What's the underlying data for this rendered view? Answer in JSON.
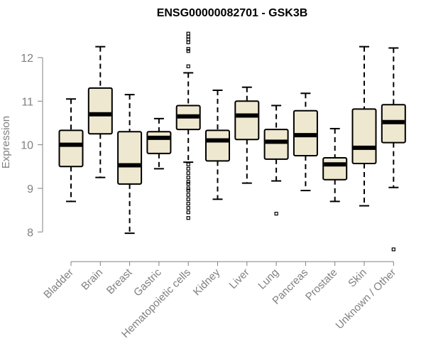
{
  "chart_data": {
    "type": "boxplot",
    "title": "ENSG00000082701 - GSK3B",
    "xlabel": "",
    "ylabel": "Expression",
    "ylim": [
      7.45,
      12.75
    ],
    "yticks": [
      8,
      9,
      10,
      11,
      12
    ],
    "colors": {
      "box_fill": "#efe8d0",
      "stroke": "#000000",
      "axis": "#808080",
      "text": "#808080",
      "title": "#000000"
    },
    "categories": [
      "Bladder",
      "Brain",
      "Breast",
      "Gastric",
      "Hematopoietic cells",
      "Kidney",
      "Liver",
      "Lung",
      "Pancreas",
      "Prostate",
      "Skin",
      "Unknown / Other"
    ],
    "boxes": [
      {
        "category": "Bladder",
        "whisker_low": 8.7,
        "q1": 9.5,
        "median": 10.0,
        "q3": 10.33,
        "whisker_high": 11.05,
        "outliers": []
      },
      {
        "category": "Brain",
        "whisker_low": 9.25,
        "q1": 10.25,
        "median": 10.7,
        "q3": 11.3,
        "whisker_high": 12.25,
        "outliers": []
      },
      {
        "category": "Breast",
        "whisker_low": 7.97,
        "q1": 9.1,
        "median": 9.53,
        "q3": 10.3,
        "whisker_high": 11.15,
        "outliers": []
      },
      {
        "category": "Gastric",
        "whisker_low": 9.45,
        "q1": 9.8,
        "median": 10.16,
        "q3": 10.3,
        "whisker_high": 10.6,
        "outliers": []
      },
      {
        "category": "Hematopoietic cells",
        "whisker_low": 9.6,
        "q1": 10.35,
        "median": 10.65,
        "q3": 10.9,
        "whisker_high": 11.65,
        "outliers": [
          12.55,
          12.48,
          12.42,
          12.35,
          12.2,
          12.15,
          11.8,
          9.55,
          9.45,
          9.35,
          9.25,
          9.15,
          9.1,
          9.0,
          8.95,
          8.85,
          8.75,
          8.65,
          8.55,
          8.45,
          8.32
        ]
      },
      {
        "category": "Kidney",
        "whisker_low": 8.75,
        "q1": 9.63,
        "median": 10.1,
        "q3": 10.33,
        "whisker_high": 11.25,
        "outliers": []
      },
      {
        "category": "Liver",
        "whisker_low": 9.12,
        "q1": 10.12,
        "median": 10.67,
        "q3": 11.0,
        "whisker_high": 11.32,
        "outliers": []
      },
      {
        "category": "Lung",
        "whisker_low": 9.17,
        "q1": 9.67,
        "median": 10.07,
        "q3": 10.35,
        "whisker_high": 10.9,
        "outliers": [
          8.42
        ]
      },
      {
        "category": "Pancreas",
        "whisker_low": 8.95,
        "q1": 9.75,
        "median": 10.22,
        "q3": 10.78,
        "whisker_high": 11.18,
        "outliers": []
      },
      {
        "category": "Prostate",
        "whisker_low": 8.7,
        "q1": 9.2,
        "median": 9.55,
        "q3": 9.7,
        "whisker_high": 10.37,
        "outliers": []
      },
      {
        "category": "Skin",
        "whisker_low": 8.6,
        "q1": 9.57,
        "median": 9.93,
        "q3": 10.82,
        "whisker_high": 12.25,
        "outliers": []
      },
      {
        "category": "Unknown / Other",
        "whisker_low": 9.02,
        "q1": 10.05,
        "median": 10.52,
        "q3": 10.92,
        "whisker_high": 12.22,
        "outliers": [
          7.6
        ]
      }
    ]
  }
}
